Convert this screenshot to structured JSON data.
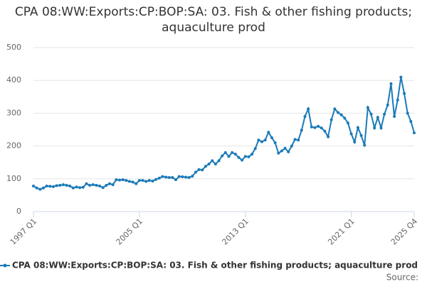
{
  "chart_data": {
    "type": "line",
    "title": "CPA 08:WW:Exports:CP:BOP:SA: 03. Fish & other fishing products; aquaculture prod",
    "source": "Source:",
    "categories": [
      "1997 Q1",
      null,
      null,
      null,
      null,
      null,
      null,
      null,
      null,
      null,
      null,
      null,
      null,
      null,
      null,
      null,
      null,
      null,
      null,
      null,
      null,
      null,
      null,
      null,
      null,
      null,
      null,
      null,
      null,
      null,
      null,
      null,
      "2005 Q1",
      null,
      null,
      null,
      null,
      null,
      null,
      null,
      null,
      null,
      null,
      null,
      null,
      null,
      null,
      null,
      null,
      null,
      null,
      null,
      null,
      null,
      null,
      null,
      null,
      null,
      null,
      null,
      null,
      null,
      null,
      null,
      "2013 Q1",
      null,
      null,
      null,
      null,
      null,
      null,
      null,
      null,
      null,
      null,
      null,
      null,
      null,
      null,
      null,
      null,
      null,
      null,
      null,
      null,
      null,
      null,
      null,
      null,
      null,
      null,
      null,
      null,
      null,
      null,
      null,
      "2021 Q1",
      null,
      null,
      null,
      null,
      null,
      null,
      null,
      null,
      null,
      null,
      null,
      null,
      null,
      null,
      null,
      null,
      null,
      null,
      "2025 Q4"
    ],
    "series": [
      {
        "name": "CPA 08:WW:Exports:CP:BOP:SA: 03. Fish & other fishing products; aquaculture prod",
        "color": "#1a7ab8",
        "values": [
          78,
          72,
          68,
          72,
          78,
          77,
          76,
          79,
          80,
          82,
          80,
          78,
          72,
          75,
          73,
          74,
          85,
          80,
          82,
          80,
          78,
          73,
          80,
          85,
          82,
          97,
          96,
          97,
          95,
          92,
          90,
          85,
          95,
          95,
          92,
          95,
          93,
          98,
          102,
          107,
          105,
          104,
          104,
          97,
          107,
          106,
          105,
          104,
          108,
          120,
          128,
          127,
          138,
          145,
          155,
          145,
          155,
          170,
          180,
          168,
          180,
          175,
          165,
          157,
          168,
          167,
          175,
          192,
          218,
          213,
          218,
          242,
          225,
          210,
          178,
          185,
          193,
          182,
          200,
          220,
          218,
          248,
          290,
          313,
          258,
          256,
          260,
          255,
          245,
          228,
          280,
          313,
          302,
          295,
          285,
          270,
          237,
          212,
          256,
          232,
          202,
          317,
          297,
          255,
          287,
          255,
          297,
          325,
          390,
          290,
          340,
          410,
          360,
          300,
          275,
          240
        ]
      }
    ],
    "ylim": [
      0,
      500
    ],
    "yticks": [
      0,
      100,
      200,
      300,
      400,
      500
    ],
    "grid": true
  }
}
